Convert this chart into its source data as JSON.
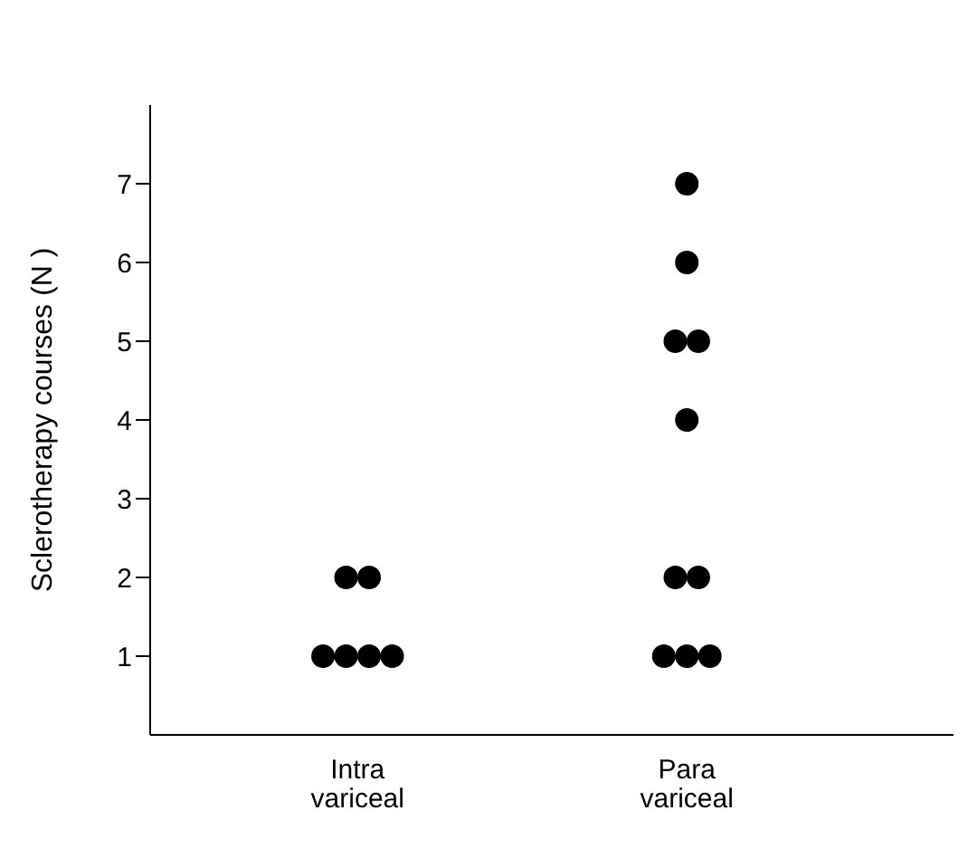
{
  "chart_data": {
    "type": "scatter",
    "ylabel": "Sclerotherapy courses (N )",
    "categories": [
      "Intra variceal",
      "Para variceal"
    ],
    "series": [
      {
        "color": "#000000",
        "x": [
          "Intra variceal",
          "Intra variceal",
          "Intra variceal",
          "Intra variceal",
          "Intra variceal",
          "Intra variceal",
          "Para variceal",
          "Para variceal",
          "Para variceal",
          "Para variceal",
          "Para variceal",
          "Para variceal",
          "Para variceal",
          "Para variceal",
          "Para variceal",
          "Para variceal"
        ],
        "values": [
          2,
          2,
          1,
          1,
          1,
          1,
          7,
          6,
          5,
          5,
          4,
          2,
          2,
          1,
          1,
          1
        ]
      }
    ],
    "ylim": [
      0,
      8
    ],
    "yticks": [
      1,
      2,
      3,
      4,
      5,
      6,
      7
    ],
    "grid": false,
    "legend": false,
    "marker": "circle"
  }
}
